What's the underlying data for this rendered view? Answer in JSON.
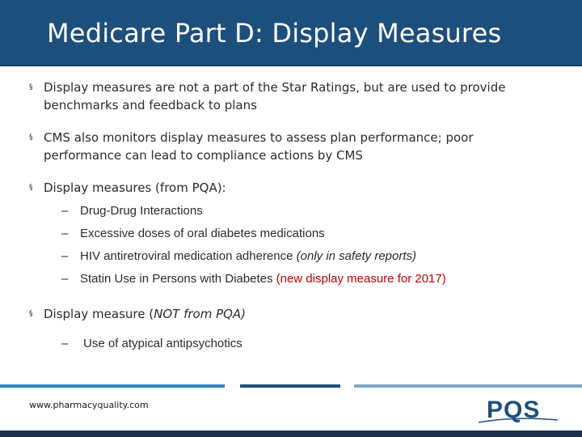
{
  "slide": {
    "title": "Medicare Part D: Display Measures"
  },
  "bullets": [
    {
      "text": "Display measures are not a part of the Star Ratings, but are used to provide benchmarks and feedback to plans"
    },
    {
      "text": "CMS also monitors display measures to assess plan performance; poor performance can lead to compliance actions by CMS"
    },
    {
      "text": "Display measures (from PQA):",
      "subitems": [
        {
          "text": "Drug-Drug Interactions"
        },
        {
          "text": "Excessive doses of oral diabetes medications"
        },
        {
          "text": "HIV antiretroviral medication adherence ",
          "note": "(only in safety reports)"
        },
        {
          "text": "Statin Use in Persons with Diabetes ",
          "note": "(new display measure for 2017)"
        }
      ]
    },
    {
      "text": "Display measure (",
      "emphasis": "NOT from PQA)",
      "subitems": [
        {
          "text": "Use of atypical antipsychotics"
        }
      ]
    }
  ],
  "markers": {
    "bullet": "§",
    "dash": "–"
  },
  "footer": {
    "url": "www.pharmacyquality.com",
    "logo_text": "PQS"
  },
  "colors": {
    "title_bar": "#1d4f7c",
    "highlight_red": "#c00000",
    "footer_blue": "#2e86c1",
    "footer_navy": "#1d4f7c",
    "footer_light": "#7fa7c2"
  }
}
